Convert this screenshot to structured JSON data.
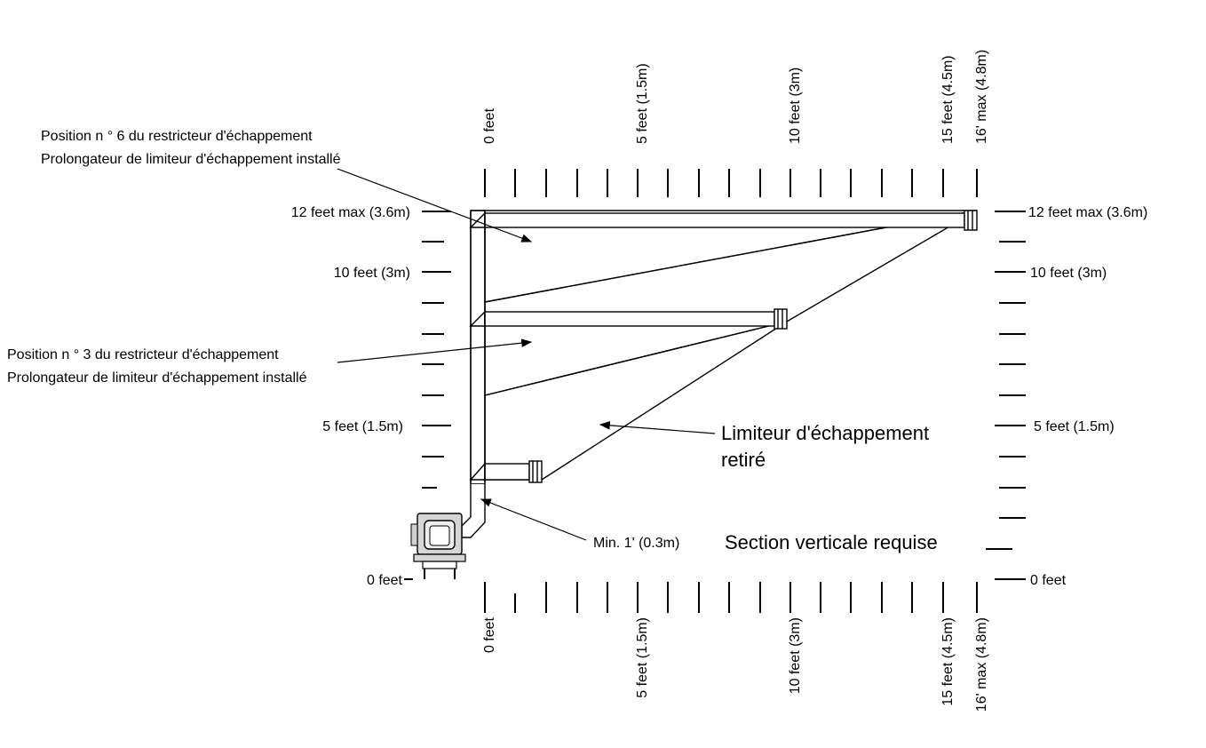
{
  "labels": {
    "top_axis": [
      "0 feet",
      "5 feet (1.5m)",
      "10 feet (3m)",
      "15 feet (4.5m)",
      "16' max (4.8m)"
    ],
    "bottom_axis": [
      "0 feet",
      "5 feet (1.5m)",
      "10 feet (3m)",
      "15 feet (4.5m)",
      "16' max (4.8m)"
    ],
    "left_axis": [
      "12 feet max (3.6m)",
      "10 feet (3m)",
      "5 feet (1.5m)",
      "0 feet"
    ],
    "right_axis": [
      "12 feet max (3.6m)",
      "10 feet (3m)",
      "5 feet (1.5m)",
      "0 feet"
    ]
  },
  "callouts": {
    "position6_line1": "Position n ° 6 du restricteur d'échappement",
    "position6_line2": "Prolongateur de limiteur d'échappement installé",
    "position3_line1": "Position n ° 3 du restricteur d'échappement",
    "position3_line2": "Prolongateur de limiteur d'échappement installé",
    "removed_line1": "Limiteur d'échappement",
    "removed_line2": "retiré",
    "min_vertical": "Min. 1' (0.3m)",
    "section_required": "Section verticale requise"
  }
}
